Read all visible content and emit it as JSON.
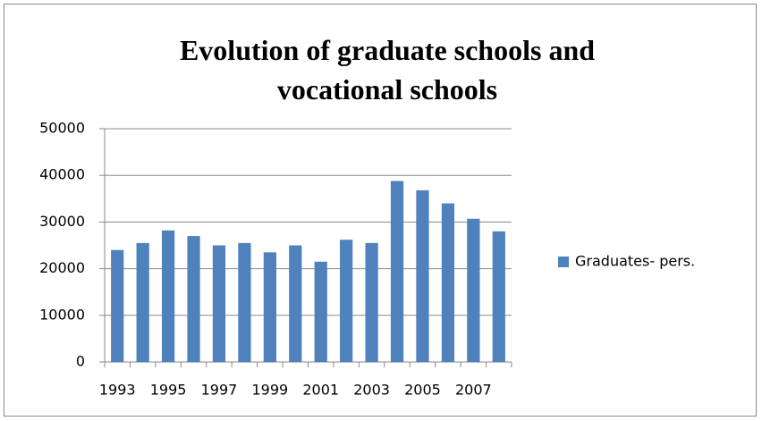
{
  "chart_data": {
    "type": "bar",
    "title": "Evolution of graduate schools and vocational schools",
    "categories": [
      "1993",
      null,
      "1995",
      null,
      "1997",
      null,
      "1999",
      null,
      "2001",
      null,
      "2003",
      null,
      "2005",
      null,
      "2007",
      null
    ],
    "series": [
      {
        "name": "Graduates- pers.",
        "color": "#4f81bd",
        "values": [
          24000,
          25500,
          28200,
          27000,
          25000,
          25500,
          23500,
          25000,
          21500,
          26200,
          25500,
          38800,
          36800,
          34000,
          30700,
          28000
        ]
      }
    ],
    "ylim": [
      0,
      50000
    ],
    "yticks": [
      0,
      10000,
      20000,
      30000,
      40000,
      50000
    ],
    "grid": true,
    "legend": "right"
  }
}
